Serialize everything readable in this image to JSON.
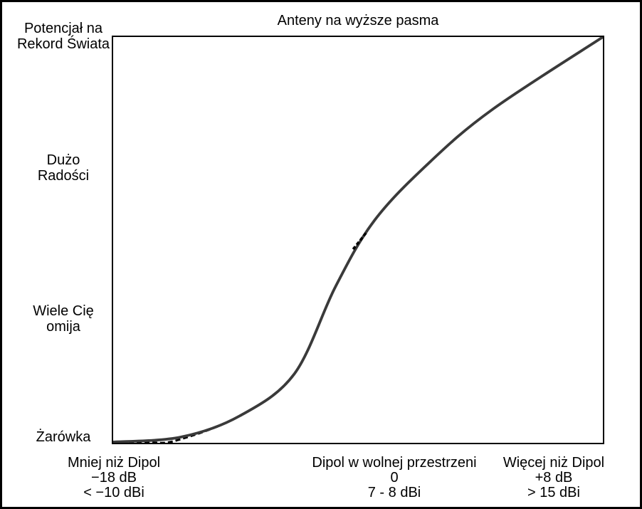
{
  "title": "Anteny na wyższe pasma",
  "colors": {
    "background": "#ffffff",
    "frame_border": "#000000",
    "axis": "#000000",
    "curve_main": "#3a3a3a",
    "curve_dashed": "#000000",
    "text": "#000000"
  },
  "y_axis_labels": [
    {
      "lines": [
        "Potencjał na",
        "Rekord Świata"
      ]
    },
    {
      "lines": [
        "Dużo",
        "Radości"
      ]
    },
    {
      "lines": [
        "Wiele Cię",
        "omija"
      ]
    },
    {
      "lines": [
        "Żarówka"
      ]
    }
  ],
  "x_axis_labels": [
    {
      "lines": [
        "Mniej niż Dipol",
        "−18 dB",
        "< −10 dBi"
      ]
    },
    {
      "lines": [
        "Dipol w wolnej przestrzeni",
        "0",
        "7 - 8 dBi"
      ]
    },
    {
      "lines": [
        "Więcej niż Dipol",
        "+8 dB",
        "> 15 dBi"
      ]
    }
  ],
  "chart_data": {
    "type": "line",
    "title": "Anteny na wyższe pasma",
    "xlabel": "",
    "ylabel": "",
    "x_categories": [
      {
        "name": "Mniej niż Dipol",
        "db": "−18 dB",
        "dbi": "< −10 dBi",
        "x_normalized": 0.0
      },
      {
        "name": "Dipol w wolnej przestrzeni",
        "db": "0",
        "dbi": "7 - 8 dBi",
        "x_normalized": 0.57
      },
      {
        "name": "Więcej niż Dipol",
        "db": "+8 dB",
        "dbi": "> 15 dBi",
        "x_normalized": 0.9
      }
    ],
    "y_categories_bottom_to_top": [
      "Żarówka",
      "Wiele Cię omija",
      "Dużo Radości",
      "Potencjał na Rekord Świata"
    ],
    "x_range_normalized": [
      0,
      1
    ],
    "y_range_normalized": [
      0,
      1
    ],
    "grid": false,
    "legend": false,
    "series": [
      {
        "name": "krzywa-kreskowana",
        "style": "dashed",
        "color": "#000000",
        "stroke_width": 3,
        "dash": "7 4",
        "points_normalized": [
          [
            0,
            0.001
          ],
          [
            0.07,
            0.001
          ],
          [
            0.13,
            0.006
          ],
          [
            0.258,
            0.066
          ],
          [
            0.37,
            0.17
          ],
          [
            0.454,
            0.385
          ],
          [
            0.533,
            0.547
          ],
          [
            0.645,
            0.69
          ],
          [
            0.775,
            0.822
          ],
          [
            1,
            1
          ]
        ]
      },
      {
        "name": "krzywa-glowna",
        "style": "solid",
        "color": "#3a3a3a",
        "stroke_width": 3.8,
        "dash": "",
        "points_normalized": [
          [
            0,
            0.002
          ],
          [
            0.138,
            0.014
          ],
          [
            0.258,
            0.066
          ],
          [
            0.37,
            0.17
          ],
          [
            0.454,
            0.385
          ],
          [
            0.533,
            0.547
          ],
          [
            0.645,
            0.69
          ],
          [
            0.775,
            0.822
          ],
          [
            1,
            1
          ]
        ]
      }
    ],
    "overlap_dash_segment_normalized": [
      [
        0.49,
        0.477
      ],
      [
        0.519,
        0.521
      ]
    ]
  }
}
